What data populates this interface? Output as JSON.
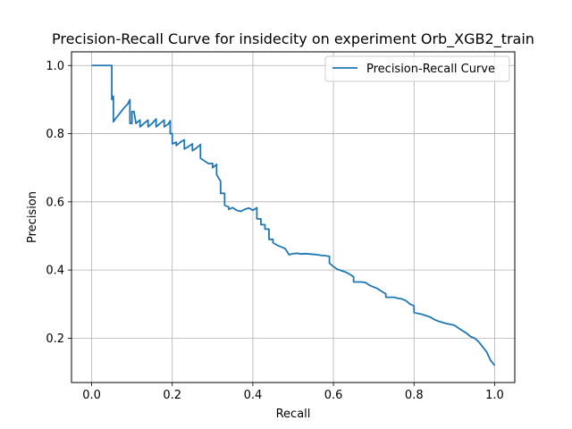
{
  "chart_data": {
    "type": "line",
    "title": "Precision-Recall Curve for insidecity on experiment Orb_XGB2_train",
    "xlabel": "Recall",
    "ylabel": "Precision",
    "xlim": [
      -0.05,
      1.05
    ],
    "ylim": [
      0.07,
      1.04
    ],
    "xticks": [
      0.0,
      0.2,
      0.4,
      0.6,
      0.8,
      1.0
    ],
    "xtick_labels": [
      "0.0",
      "0.2",
      "0.4",
      "0.6",
      "0.8",
      "1.0"
    ],
    "yticks": [
      0.2,
      0.4,
      0.6,
      0.8,
      1.0
    ],
    "ytick_labels": [
      "0.2",
      "0.4",
      "0.6",
      "0.8",
      "1.0"
    ],
    "grid": true,
    "legend": "upper-right",
    "series": [
      {
        "name": "Precision-Recall Curve",
        "color": "#1f77b4",
        "x": [
          0.0,
          0.05,
          0.05,
          0.052,
          0.052,
          0.054,
          0.054,
          0.06,
          0.07,
          0.08,
          0.09,
          0.095,
          0.095,
          0.1,
          0.1,
          0.105,
          0.11,
          0.12,
          0.12,
          0.13,
          0.14,
          0.14,
          0.15,
          0.16,
          0.16,
          0.17,
          0.18,
          0.18,
          0.19,
          0.195,
          0.195,
          0.2,
          0.2,
          0.21,
          0.21,
          0.22,
          0.23,
          0.23,
          0.24,
          0.25,
          0.25,
          0.26,
          0.27,
          0.27,
          0.28,
          0.29,
          0.3,
          0.3,
          0.31,
          0.31,
          0.32,
          0.32,
          0.33,
          0.33,
          0.34,
          0.34,
          0.35,
          0.36,
          0.37,
          0.38,
          0.39,
          0.4,
          0.41,
          0.41,
          0.42,
          0.42,
          0.43,
          0.43,
          0.44,
          0.44,
          0.45,
          0.45,
          0.46,
          0.47,
          0.48,
          0.49,
          0.5,
          0.51,
          0.52,
          0.53,
          0.54,
          0.55,
          0.56,
          0.57,
          0.58,
          0.59,
          0.59,
          0.6,
          0.61,
          0.62,
          0.63,
          0.64,
          0.65,
          0.65,
          0.67,
          0.68,
          0.69,
          0.7,
          0.71,
          0.72,
          0.73,
          0.73,
          0.75,
          0.76,
          0.77,
          0.78,
          0.79,
          0.8,
          0.8,
          0.82,
          0.84,
          0.85,
          0.86,
          0.88,
          0.9,
          0.91,
          0.92,
          0.93,
          0.94,
          0.95,
          0.96,
          0.97,
          0.98,
          0.99,
          1.0
        ],
        "y": [
          1.0,
          1.0,
          0.9,
          0.9,
          0.91,
          0.91,
          0.835,
          0.845,
          0.86,
          0.875,
          0.888,
          0.9,
          0.83,
          0.83,
          0.865,
          0.865,
          0.83,
          0.84,
          0.82,
          0.83,
          0.84,
          0.82,
          0.83,
          0.843,
          0.82,
          0.83,
          0.84,
          0.82,
          0.828,
          0.838,
          0.8,
          0.8,
          0.77,
          0.775,
          0.765,
          0.775,
          0.782,
          0.755,
          0.762,
          0.77,
          0.75,
          0.758,
          0.768,
          0.728,
          0.72,
          0.712,
          0.713,
          0.7,
          0.71,
          0.68,
          0.66,
          0.625,
          0.625,
          0.59,
          0.585,
          0.578,
          0.583,
          0.575,
          0.572,
          0.578,
          0.582,
          0.575,
          0.583,
          0.55,
          0.55,
          0.533,
          0.533,
          0.52,
          0.52,
          0.49,
          0.49,
          0.48,
          0.473,
          0.468,
          0.463,
          0.445,
          0.448,
          0.449,
          0.447,
          0.448,
          0.447,
          0.446,
          0.445,
          0.443,
          0.442,
          0.44,
          0.42,
          0.41,
          0.402,
          0.398,
          0.394,
          0.388,
          0.38,
          0.365,
          0.365,
          0.363,
          0.355,
          0.35,
          0.345,
          0.337,
          0.33,
          0.32,
          0.32,
          0.317,
          0.315,
          0.31,
          0.3,
          0.295,
          0.275,
          0.27,
          0.262,
          0.255,
          0.25,
          0.243,
          0.238,
          0.23,
          0.222,
          0.215,
          0.205,
          0.2,
          0.19,
          0.175,
          0.16,
          0.135,
          0.12
        ]
      }
    ]
  }
}
